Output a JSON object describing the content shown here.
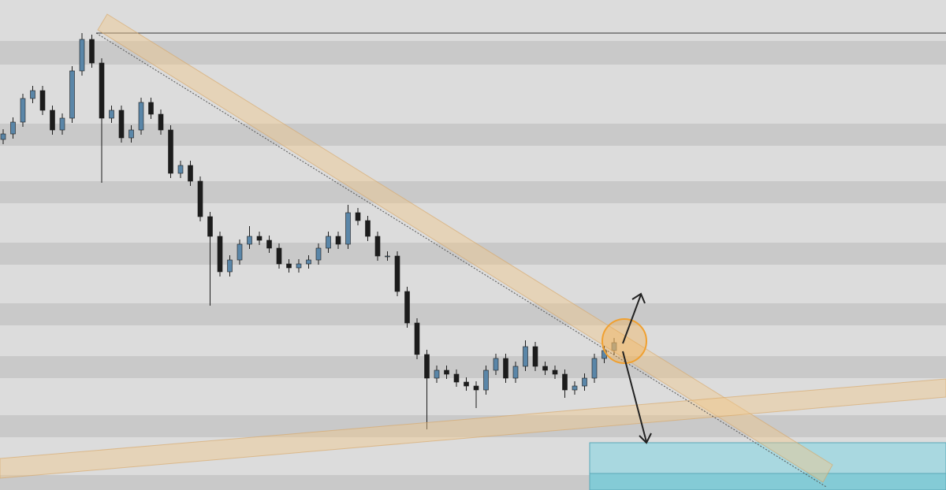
{
  "chart_data": {
    "type": "candlestick",
    "ylim": [
      0,
      622
    ],
    "open": [
      445,
      452,
      467,
      497,
      507,
      482,
      457,
      472,
      532,
      572,
      542,
      472,
      482,
      447,
      457,
      492,
      477,
      457,
      402,
      412,
      392,
      347,
      322,
      277,
      292,
      312,
      322,
      317,
      307,
      287,
      282,
      287,
      292,
      307,
      322,
      312,
      352,
      342,
      322,
      297,
      297,
      252,
      212,
      172,
      142,
      152,
      147,
      137,
      132,
      127,
      152,
      167,
      142,
      157,
      182,
      157,
      152,
      147,
      127,
      132,
      142,
      167,
      177
    ],
    "high": [
      458,
      473,
      503,
      513,
      513,
      488,
      478,
      538,
      580,
      578,
      548,
      488,
      488,
      463,
      498,
      498,
      483,
      463,
      418,
      418,
      398,
      353,
      328,
      298,
      318,
      335,
      328,
      323,
      313,
      293,
      293,
      298,
      313,
      328,
      328,
      362,
      358,
      348,
      328,
      303,
      303,
      258,
      218,
      178,
      158,
      158,
      153,
      143,
      138,
      158,
      173,
      173,
      163,
      190,
      188,
      163,
      158,
      153,
      138,
      148,
      173,
      183,
      193
    ],
    "low": [
      439,
      446,
      461,
      491,
      476,
      451,
      451,
      466,
      526,
      536,
      390,
      466,
      441,
      441,
      451,
      471,
      451,
      396,
      396,
      386,
      341,
      234,
      271,
      271,
      286,
      306,
      311,
      301,
      281,
      276,
      276,
      281,
      286,
      301,
      306,
      306,
      336,
      316,
      291,
      291,
      246,
      206,
      166,
      77,
      136,
      141,
      131,
      126,
      104,
      121,
      146,
      136,
      136,
      151,
      151,
      146,
      141,
      117,
      121,
      126,
      136,
      161,
      171
    ],
    "close": [
      452,
      467,
      497,
      507,
      482,
      457,
      472,
      532,
      572,
      542,
      472,
      482,
      447,
      457,
      492,
      477,
      457,
      402,
      412,
      392,
      347,
      322,
      277,
      292,
      312,
      322,
      317,
      307,
      287,
      282,
      287,
      292,
      307,
      322,
      312,
      352,
      342,
      322,
      297,
      297,
      252,
      212,
      172,
      142,
      152,
      147,
      137,
      132,
      127,
      152,
      167,
      142,
      157,
      182,
      157,
      152,
      147,
      127,
      132,
      142,
      167,
      177,
      187
    ],
    "up_color": "#5a86a8",
    "down_color": "#1c1c1c"
  }
}
